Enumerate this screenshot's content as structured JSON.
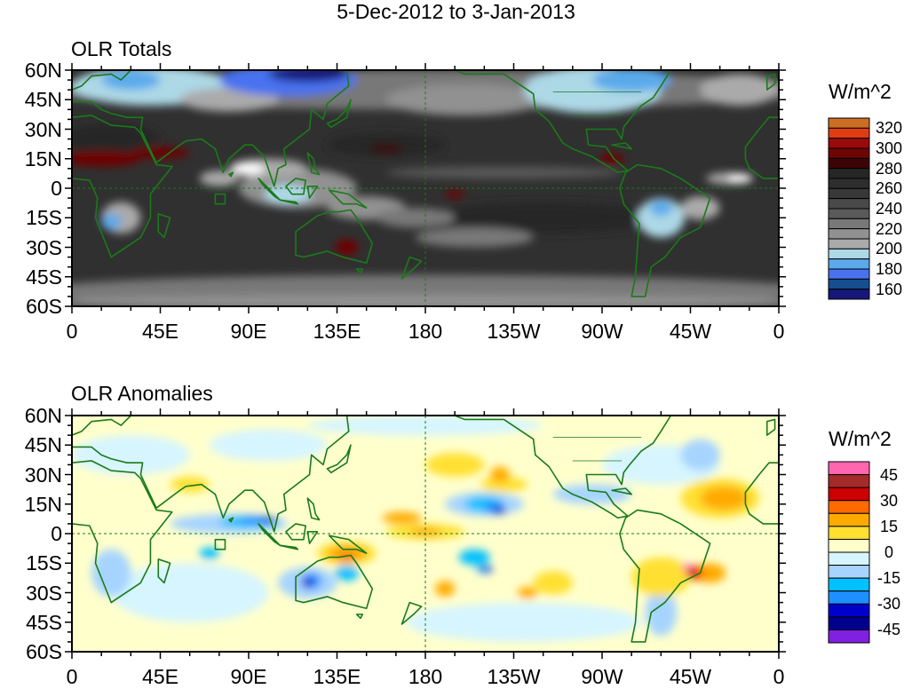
{
  "title": "5-Dec-2012 to 3-Jan-2013",
  "x_tick_labels": [
    "0",
    "45E",
    "90E",
    "135E",
    "180",
    "135W",
    "90W",
    "45W",
    "0"
  ],
  "y_tick_labels": [
    "60N",
    "45N",
    "30N",
    "15N",
    "0",
    "15S",
    "30S",
    "45S",
    "60S"
  ],
  "panels": [
    {
      "title": "OLR Totals",
      "legend": {
        "title": "W/m^2",
        "labels": [
          "320",
          "300",
          "280",
          "260",
          "240",
          "220",
          "200",
          "180",
          "160"
        ],
        "colors": [
          "#cc6f24",
          "#e03c14",
          "#9a0a0a",
          "#6e0505",
          "#3c0404",
          "#262626",
          "#2e2e2e",
          "#383838",
          "#4a4a4a",
          "#5a5a5a",
          "#787878",
          "#919191",
          "#aaaaaa",
          "#add8e6",
          "#5aaaeb",
          "#4a72f0",
          "#154f8f",
          "#17177a"
        ]
      }
    },
    {
      "title": "OLR Anomalies",
      "legend": {
        "title": "W/m^2",
        "labels": [
          "45",
          "30",
          "15",
          "0",
          "-15",
          "-30",
          "-45"
        ],
        "colors": [
          "#ff66b0",
          "#a52a2a",
          "#cc0000",
          "#ff6a00",
          "#ffaa00",
          "#ffe030",
          "#ffffcc",
          "#d6f5ff",
          "#a6d4ff",
          "#00c0ff",
          "#1e8fff",
          "#0000cc",
          "#000090",
          "#8020e0"
        ]
      }
    }
  ],
  "colors": {
    "coastline": "#1a7a1a",
    "frame": "#000000"
  }
}
